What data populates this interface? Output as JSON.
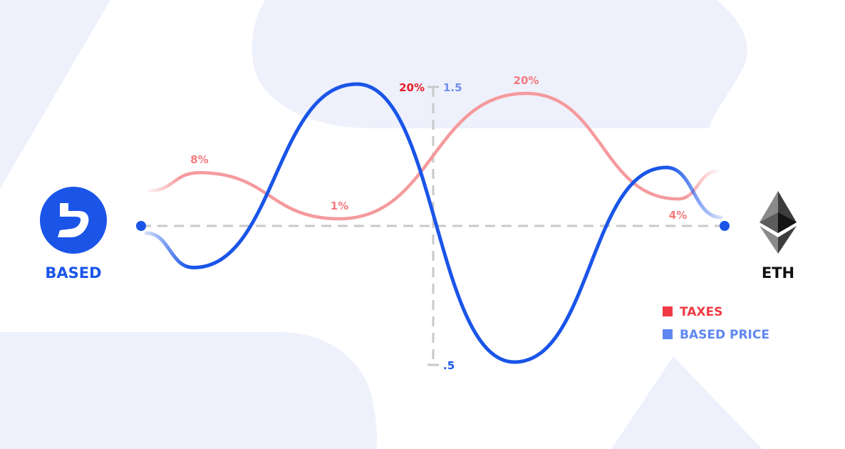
{
  "colors": {
    "background_shape": "#eef1fc",
    "taxes": "#f47a7e",
    "taxes_legend": "#ef3b44",
    "price": "#1a55e8",
    "price_legend": "#5e87f0",
    "axis": "#c9c9c9",
    "based_brand": "#1a55e8",
    "eth_text": "#111111",
    "tax_axis_label": "#e81c24",
    "price_axis_label": "#6e8fe8"
  },
  "left_token": {
    "label": "BASED",
    "icon": "based-logo-icon"
  },
  "right_token": {
    "label": "ETH",
    "icon": "ethereum-logo-icon"
  },
  "legend": [
    {
      "label": "TAXES",
      "color": "#ef3b44"
    },
    {
      "label": "BASED PRICE",
      "color": "#5e87f0"
    }
  ],
  "chart_data": {
    "type": "line",
    "taxes_axis": {
      "top_label": "20%"
    },
    "price_axis": {
      "top_label": "1.5",
      "bottom_label": ".5",
      "range": [
        0.5,
        1.5
      ]
    },
    "grid": false,
    "legend_position": "bottom-right",
    "series": [
      {
        "name": "TAXES",
        "unit": "%",
        "points": [
          {
            "x": 0.1,
            "y": 8,
            "label": "8%"
          },
          {
            "x": 0.34,
            "y": 1,
            "label": "1%"
          },
          {
            "x": 0.66,
            "y": 20,
            "label": "20%"
          },
          {
            "x": 0.92,
            "y": 4,
            "label": "4%"
          }
        ]
      },
      {
        "name": "BASED PRICE",
        "points": [
          {
            "x": 0.09,
            "y": 0.84
          },
          {
            "x": 0.37,
            "y": 1.5
          },
          {
            "x": 0.64,
            "y": 0.5
          },
          {
            "x": 0.9,
            "y": 1.2
          }
        ]
      }
    ]
  }
}
